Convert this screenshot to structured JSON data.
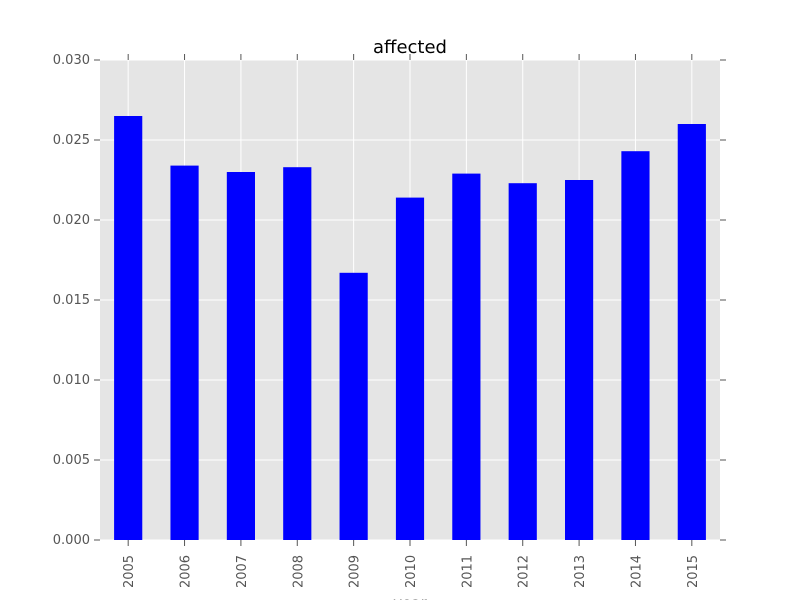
{
  "chart_data": {
    "type": "bar",
    "title": "affected",
    "xlabel": "year",
    "ylabel": "",
    "categories": [
      "2005",
      "2006",
      "2007",
      "2008",
      "2009",
      "2010",
      "2011",
      "2012",
      "2013",
      "2014",
      "2015"
    ],
    "values": [
      0.0265,
      0.0234,
      0.023,
      0.0233,
      0.0167,
      0.0214,
      0.0229,
      0.0223,
      0.0225,
      0.0243,
      0.026
    ],
    "ylim": [
      0,
      0.03
    ],
    "yticks": [
      "0.000",
      "0.005",
      "0.010",
      "0.015",
      "0.020",
      "0.025",
      "0.030"
    ],
    "grid": true,
    "legend": "none",
    "colors": {
      "bar": "#0000ff",
      "plot_background": "#e5e5e5",
      "grid": "#ffffff"
    }
  }
}
